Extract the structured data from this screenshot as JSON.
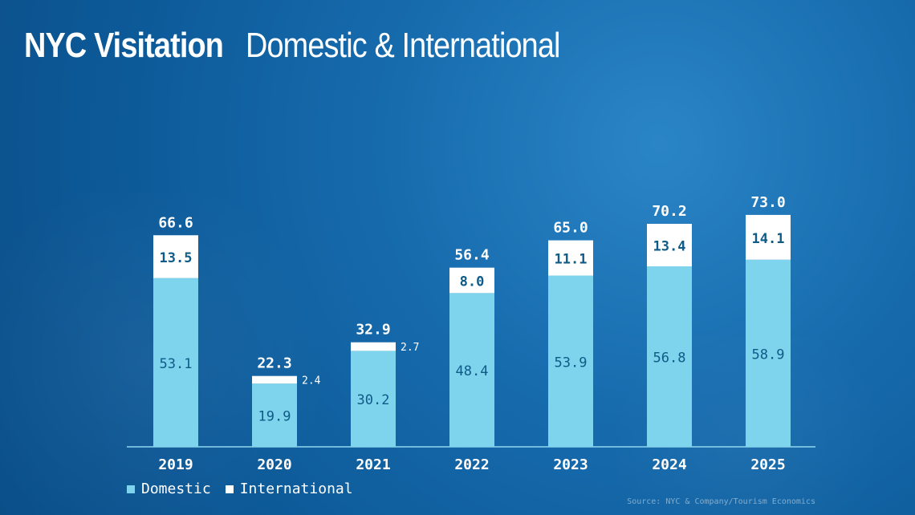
{
  "chart_data": {
    "type": "bar",
    "stacked": true,
    "title": "NYC Visitation",
    "subtitle": "Domestic & International",
    "categories": [
      "2019",
      "2020",
      "2021",
      "2022",
      "2023",
      "2024",
      "2025"
    ],
    "series": [
      {
        "name": "Domestic",
        "values": [
          53.1,
          19.9,
          30.2,
          48.4,
          53.9,
          56.8,
          58.9
        ]
      },
      {
        "name": "International",
        "values": [
          13.5,
          2.4,
          2.7,
          8.0,
          11.1,
          13.4,
          14.1
        ]
      }
    ],
    "totals": [
      66.6,
      22.3,
      32.9,
      56.4,
      65.0,
      70.2,
      73.0
    ],
    "ylim": [
      0,
      75
    ],
    "grid": false,
    "legend_position": "bottom-left",
    "colors": {
      "domestic": "#7ed4ec",
      "international": "#ffffff",
      "domestic_label": "#0f5b88",
      "international_label": "#0f5b88",
      "total_label": "#ffffff",
      "axis": "#8fd7ef"
    },
    "source": "Source: NYC & Company/Tourism Economics"
  }
}
